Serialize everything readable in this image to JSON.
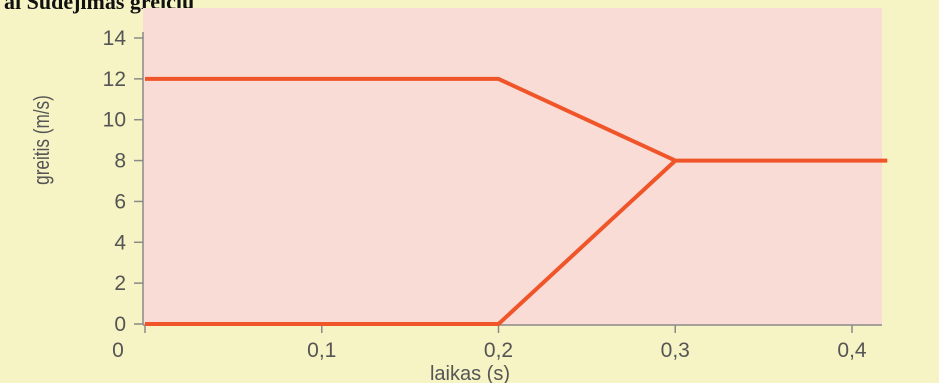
{
  "caption": "ai Sudėjimas greičių",
  "colors": {
    "plot_background": "#f8dcd5",
    "page_background": "#f6f3c4",
    "line": "#f0552a",
    "text": "#555555"
  },
  "chart_data": {
    "type": "line",
    "xlabel": "laikas (s)",
    "ylabel": "greitis (m/s)",
    "xlim": [
      0,
      0.42
    ],
    "ylim": [
      0,
      14
    ],
    "x_ticks": [
      {
        "value": 0,
        "label": "0"
      },
      {
        "value": 0.1,
        "label": "0,1"
      },
      {
        "value": 0.2,
        "label": "0,2"
      },
      {
        "value": 0.3,
        "label": "0,3"
      },
      {
        "value": 0.4,
        "label": "0,4"
      }
    ],
    "y_ticks": [
      {
        "value": 0,
        "label": "0"
      },
      {
        "value": 2,
        "label": "2"
      },
      {
        "value": 4,
        "label": "4"
      },
      {
        "value": 6,
        "label": "6"
      },
      {
        "value": 8,
        "label": "8"
      },
      {
        "value": 10,
        "label": "10"
      },
      {
        "value": 12,
        "label": "12"
      },
      {
        "value": 14,
        "label": "14"
      }
    ],
    "grid": false,
    "legend": "none",
    "series": [
      {
        "x": [
          0,
          0.2,
          0.3,
          0.42
        ],
        "y": [
          12,
          12,
          8,
          8
        ]
      },
      {
        "x": [
          0,
          0.2,
          0.3
        ],
        "y": [
          0,
          0,
          8
        ]
      }
    ]
  }
}
